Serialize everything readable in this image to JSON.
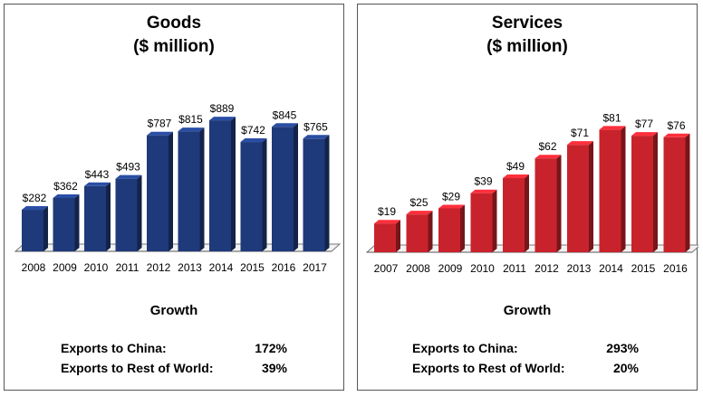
{
  "chart_data": [
    {
      "type": "bar",
      "title": "Goods",
      "subtitle": "($ million)",
      "categories": [
        "2008",
        "2009",
        "2010",
        "2011",
        "2012",
        "2013",
        "2014",
        "2015",
        "2016",
        "2017"
      ],
      "values": [
        282,
        362,
        443,
        493,
        787,
        815,
        889,
        742,
        845,
        765
      ],
      "data_labels": [
        "$282",
        "$362",
        "$443",
        "$493",
        "$787",
        "$815",
        "$889",
        "$742",
        "$845",
        "$765"
      ],
      "ylim": [
        0,
        1000
      ],
      "grid": false,
      "color": "#1f3a7a"
    },
    {
      "type": "bar",
      "title": "Services",
      "subtitle": "($ million)",
      "categories": [
        "2007",
        "2008",
        "2009",
        "2010",
        "2011",
        "2012",
        "2013",
        "2014",
        "2015",
        "2016"
      ],
      "values": [
        19,
        25,
        29,
        39,
        49,
        62,
        71,
        81,
        77,
        76
      ],
      "data_labels": [
        "$19",
        "$25",
        "$29",
        "$39",
        "$49",
        "$62",
        "$71",
        "$81",
        "$77",
        "$76"
      ],
      "ylim": [
        0,
        95
      ],
      "grid": false,
      "color": "#c8232c"
    }
  ],
  "growth": [
    {
      "title": "Growth",
      "rows": [
        {
          "label": "Exports to China:",
          "value": "172%"
        },
        {
          "label": "Exports to Rest of World:",
          "value": "39%"
        }
      ]
    },
    {
      "title": "Growth",
      "rows": [
        {
          "label": "Exports to China:",
          "value": "293%"
        },
        {
          "label": "Exports to Rest of World:",
          "value": "20%"
        }
      ]
    }
  ]
}
